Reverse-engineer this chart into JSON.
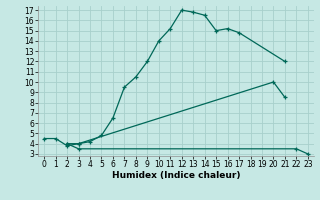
{
  "xlabel": "Humidex (Indice chaleur)",
  "bg_color": "#c6e8e4",
  "grid_color": "#a8d0cc",
  "line_color": "#006858",
  "xlim": [
    -0.5,
    23.5
  ],
  "ylim": [
    2.8,
    17.4
  ],
  "series1_x": [
    0,
    1,
    2,
    3,
    4,
    5,
    6,
    7,
    8,
    9,
    10,
    11,
    12,
    13,
    14,
    15,
    16,
    17,
    21
  ],
  "series1_y": [
    4.5,
    4.5,
    3.8,
    4.0,
    4.2,
    4.8,
    6.5,
    9.5,
    10.5,
    12.0,
    14.0,
    15.2,
    17.0,
    16.8,
    16.5,
    15.0,
    15.2,
    14.8,
    12.0
  ],
  "series2_x": [
    2,
    3,
    20,
    21
  ],
  "series2_y": [
    4.0,
    4.0,
    10.0,
    8.5
  ],
  "series3_x": [
    2,
    3,
    22,
    23
  ],
  "series3_y": [
    4.0,
    3.5,
    3.5,
    3.0
  ],
  "yticks": [
    3,
    4,
    5,
    6,
    7,
    8,
    9,
    10,
    11,
    12,
    13,
    14,
    15,
    16,
    17
  ],
  "xticks": [
    0,
    1,
    2,
    3,
    4,
    5,
    6,
    7,
    8,
    9,
    10,
    11,
    12,
    13,
    14,
    15,
    16,
    17,
    18,
    19,
    20,
    21,
    22,
    23
  ],
  "tick_fontsize": 5.5,
  "xlabel_fontsize": 6.5
}
